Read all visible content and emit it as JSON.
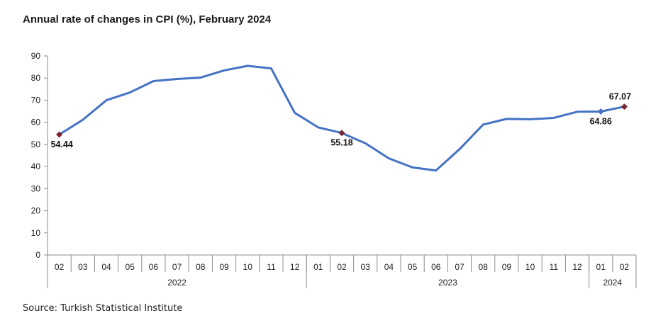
{
  "chart_data": {
    "type": "line",
    "title": "Annual rate of changes in CPI (%), February 2024",
    "ylim": [
      0,
      90
    ],
    "yticks": [
      0,
      10,
      20,
      30,
      40,
      50,
      60,
      70,
      80,
      90
    ],
    "grid": false,
    "legend": "none",
    "x": [
      "02",
      "03",
      "04",
      "05",
      "06",
      "07",
      "08",
      "09",
      "10",
      "11",
      "12",
      "01",
      "02",
      "03",
      "04",
      "05",
      "06",
      "07",
      "08",
      "09",
      "10",
      "11",
      "12",
      "01",
      "02"
    ],
    "year_groups": [
      {
        "label": "2022",
        "start": 0,
        "end": 10
      },
      {
        "label": "2023",
        "start": 11,
        "end": 22
      },
      {
        "label": "2024",
        "start": 23,
        "end": 24
      }
    ],
    "series": [
      {
        "values": [
          54.44,
          61.14,
          69.97,
          73.5,
          78.62,
          79.6,
          80.21,
          83.45,
          85.51,
          84.39,
          64.27,
          57.68,
          55.18,
          50.51,
          43.68,
          39.59,
          38.21,
          47.83,
          58.94,
          61.53,
          61.36,
          61.98,
          64.77,
          64.86,
          67.07
        ],
        "color": "#4472C4"
      }
    ],
    "markers": [
      {
        "index": 0,
        "label": "54.44",
        "color": "#7B2431"
      },
      {
        "index": 12,
        "label": "55.18",
        "color": "#7B2431"
      },
      {
        "index": 23,
        "label": "64.86",
        "color": "#4472C4"
      },
      {
        "index": 24,
        "label": "67.07",
        "color": "#7B2431"
      }
    ]
  },
  "source": "Source: Turkish Statistical Institute"
}
